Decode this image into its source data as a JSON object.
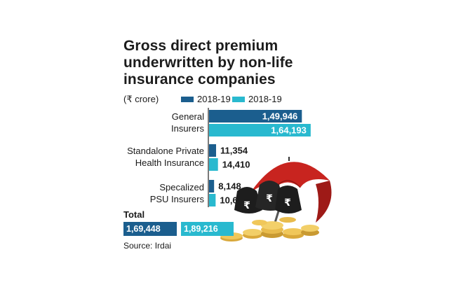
{
  "chart_data": {
    "type": "bar",
    "orientation": "horizontal",
    "title": "Gross direct premium underwritten by non-life insurance companies",
    "unit_label": "(₹ crore)",
    "categories": [
      "General Insurers",
      "Standalone Private Health Insurance",
      "Specalized PSU Insurers"
    ],
    "category_lines": [
      [
        "General",
        "Insurers"
      ],
      [
        "Standalone Private",
        "Health Insurance"
      ],
      [
        "Specalized",
        "PSU Insurers"
      ]
    ],
    "series": [
      {
        "name": "2018-19",
        "color": "#1b5e8e",
        "values": [
          149946,
          11354,
          8148
        ],
        "labels": [
          "1,49,946",
          "11,354",
          "8,148"
        ]
      },
      {
        "name": "2018-19",
        "color": "#29b9cf",
        "values": [
          164193,
          14410,
          10613
        ],
        "labels": [
          "1,64,193",
          "14,410",
          "10,613"
        ]
      }
    ],
    "xlim": [
      0,
      170000
    ],
    "grid": false,
    "legend": "top",
    "totals": {
      "label": "Total",
      "values": [
        {
          "text": "1,69,448",
          "color": "#1b5e8e"
        },
        {
          "text": "1,89,216",
          "color": "#29b9cf"
        }
      ]
    },
    "source": "Source: Irdai"
  }
}
